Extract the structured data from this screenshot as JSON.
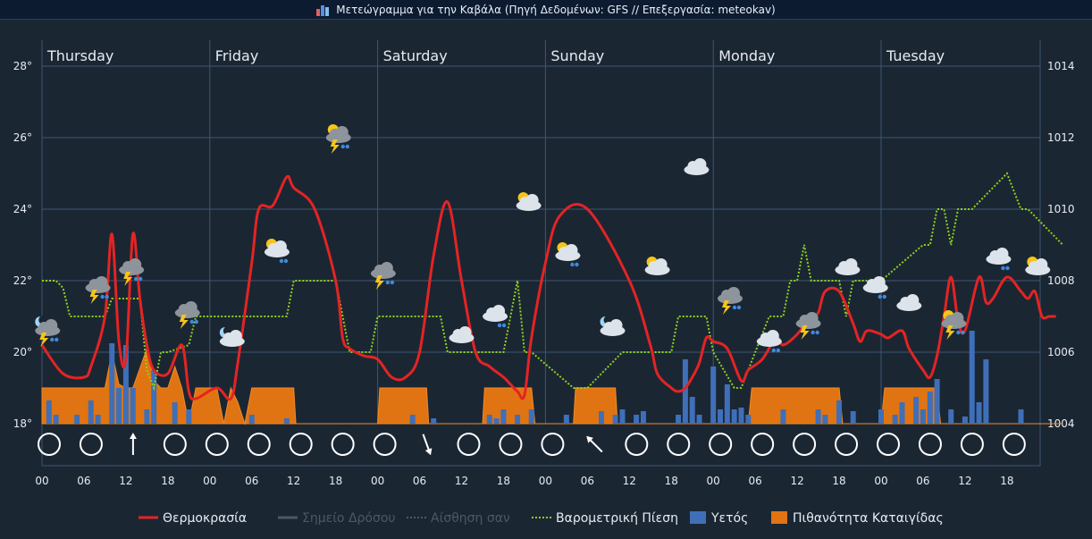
{
  "window": {
    "title": "Μετεώγραμμα για την Καβάλα (Πηγή Δεδομένων: GFS // Επεξεργασία: meteokav)"
  },
  "colors": {
    "background": "#1b2633",
    "grid": "#3e5770",
    "temperature": "#e32424",
    "pressure": "#8cd21e",
    "precipitation": "#3f6fb8",
    "storm": "#e07412",
    "text": "#e6ebf2"
  },
  "chart_data": {
    "type": "line",
    "days": [
      "Thursday",
      "Friday",
      "Saturday",
      "Sunday",
      "Monday",
      "Tuesday"
    ],
    "x_ticks": [
      "00",
      "06",
      "12",
      "18",
      "00",
      "06",
      "12",
      "18",
      "00",
      "06",
      "12",
      "18",
      "00",
      "06",
      "12",
      "18",
      "00",
      "06",
      "12",
      "18",
      "00",
      "06",
      "12",
      "18"
    ],
    "x_unit": "hours since Thursday 00:00",
    "x_range": [
      0,
      146
    ],
    "y_left": {
      "ticks": [
        "18°",
        "20°",
        "22°",
        "24°",
        "26°",
        "28°"
      ],
      "range": [
        18,
        28
      ],
      "unit": "°C"
    },
    "y_right": {
      "ticks": [
        "1004",
        "1006",
        "1008",
        "1010",
        "1012",
        "1014"
      ],
      "range": [
        1004,
        1014
      ],
      "unit": "hPa"
    },
    "grid": true,
    "legend_position": "bottom",
    "legend": [
      {
        "key": "temperature",
        "label": "Θερμοκρασία",
        "style": "line",
        "color": "#e32424"
      },
      {
        "key": "dewpoint",
        "label": "Σημείο Δρόσου",
        "style": "line",
        "color": "#4e5864"
      },
      {
        "key": "feels_like",
        "label": "Αίσθηση σαν",
        "style": "dotted",
        "color": "#4e5864"
      },
      {
        "key": "pressure",
        "label": "Βαρομετρική Πίεση",
        "style": "dotted",
        "color": "#8cd21e"
      },
      {
        "key": "precipitation",
        "label": "Υετός",
        "style": "bar",
        "color": "#3f6fb8"
      },
      {
        "key": "storm_probability",
        "label": "Πιθανότητα Καταιγίδας",
        "style": "area",
        "color": "#e07412"
      }
    ],
    "temperature": {
      "x": [
        0,
        3,
        6,
        7,
        9,
        10,
        11,
        12,
        13,
        14,
        15,
        16,
        18,
        20,
        21,
        22,
        25,
        27,
        28,
        30,
        31,
        33,
        35,
        36,
        39,
        42,
        43,
        44,
        46,
        48,
        50,
        52,
        54,
        56,
        58,
        60,
        62,
        64,
        66,
        67,
        68,
        69,
        70,
        72,
        74,
        78,
        84,
        87,
        88,
        90,
        91,
        92,
        93,
        94,
        95,
        96,
        98,
        100,
        101,
        103,
        105,
        106,
        108,
        110,
        111,
        112,
        114,
        116,
        117,
        118,
        120,
        121,
        123,
        124,
        126,
        127,
        128,
        129,
        130,
        131,
        132,
        134,
        135,
        136,
        138,
        140,
        141,
        142,
        143,
        144,
        145
      ],
      "y": [
        20.2,
        19.4,
        19.3,
        19.6,
        21,
        23.3,
        20.3,
        19.8,
        23.3,
        21.5,
        20.2,
        19.5,
        19.4,
        20.2,
        18.9,
        18.7,
        19,
        18.7,
        19.7,
        22.5,
        24,
        24.1,
        24.9,
        24.6,
        24,
        22,
        20.4,
        20.1,
        19.9,
        19.8,
        19.3,
        19.3,
        20,
        22.7,
        24.2,
        22,
        20,
        19.6,
        19.3,
        19.1,
        18.9,
        18.8,
        20.4,
        22.5,
        23.8,
        24,
        22,
        20.2,
        19.4,
        19,
        18.9,
        19,
        19.3,
        19.7,
        20.4,
        20.3,
        20.1,
        19.2,
        19.5,
        19.8,
        20.4,
        20.2,
        20.5,
        21,
        21.1,
        21.7,
        21.7,
        20.8,
        20.3,
        20.6,
        20.5,
        20.4,
        20.6,
        20.1,
        19.5,
        19.3,
        19.9,
        21,
        22.1,
        20.9,
        20.6,
        22.1,
        21.4,
        21.5,
        22.1,
        21.7,
        21.5,
        21.7,
        21.0,
        21.0,
        21.0
      ]
    },
    "pressure": {
      "x": [
        0,
        2,
        3,
        4,
        9,
        10,
        14,
        15,
        16,
        17,
        18,
        21,
        22,
        35,
        36,
        42,
        43,
        44,
        45,
        47,
        48,
        50,
        52,
        57,
        58,
        60,
        62,
        66,
        67,
        68,
        69,
        70,
        76,
        78,
        83,
        90,
        91,
        95,
        96,
        99,
        100,
        104,
        106,
        107,
        108,
        109,
        110,
        114,
        115,
        116,
        120,
        126,
        127,
        128,
        129,
        130,
        131,
        132,
        133,
        138,
        140,
        141,
        146
      ],
      "y": [
        1008,
        1008,
        1007.8,
        1007,
        1007,
        1007.5,
        1007.5,
        1005.5,
        1005,
        1006,
        1006,
        1006.2,
        1007,
        1007,
        1008,
        1008,
        1007,
        1006,
        1006,
        1006,
        1007,
        1007,
        1007,
        1007,
        1006,
        1006,
        1006,
        1006,
        1007,
        1008,
        1006,
        1006,
        1005,
        1005,
        1006,
        1006,
        1007,
        1007,
        1006,
        1005,
        1005,
        1007,
        1007,
        1008,
        1008,
        1009,
        1008,
        1008,
        1007,
        1008,
        1008,
        1009,
        1009,
        1010,
        1010,
        1009,
        1010,
        1010,
        1010,
        1011,
        1010,
        1010,
        1009
      ]
    },
    "precipitation": {
      "x": [
        1,
        2,
        5,
        7,
        8,
        10,
        11,
        12,
        13,
        15,
        16,
        19,
        21,
        30,
        35,
        53,
        56,
        64,
        65,
        66,
        68,
        70,
        75,
        80,
        82,
        83,
        85,
        86,
        91,
        92,
        93,
        94,
        96,
        97,
        98,
        99,
        100,
        101,
        106,
        111,
        112,
        114,
        116,
        120,
        122,
        123,
        125,
        126,
        127,
        128,
        130,
        132,
        133,
        134,
        135,
        140
      ],
      "y": [
        0.65,
        0.25,
        0.25,
        0.65,
        0.25,
        2.25,
        1.0,
        2.2,
        1.0,
        0.4,
        1.5,
        0.6,
        0.4,
        0.25,
        0.15,
        0.25,
        0.15,
        0.25,
        0.15,
        0.4,
        0.25,
        0.4,
        0.25,
        0.35,
        0.25,
        0.4,
        0.25,
        0.35,
        0.25,
        1.8,
        0.75,
        0.25,
        1.6,
        0.4,
        1.1,
        0.4,
        0.45,
        0.25,
        0.4,
        0.4,
        0.25,
        0.65,
        0.35,
        0.4,
        0.25,
        0.6,
        0.75,
        0.4,
        0.9,
        1.25,
        0.4,
        0.2,
        2.6,
        0.6,
        1.8,
        0.4
      ]
    },
    "storm_probability": {
      "x": [
        0,
        9,
        10,
        11,
        12,
        13,
        15,
        16,
        17,
        18,
        19,
        20,
        21,
        22,
        25,
        26,
        27,
        28,
        29,
        30,
        36,
        36.3,
        48,
        48.3,
        55,
        55.3,
        63,
        63.3,
        70,
        70.5,
        76,
        76.3,
        82,
        82.3,
        101,
        101.5,
        114,
        114.5,
        120,
        120.5,
        128,
        128.5,
        146
      ],
      "y": [
        1.0,
        1.0,
        2.0,
        1.1,
        1.0,
        1.0,
        2.1,
        1.2,
        1.0,
        1.0,
        1.6,
        1.0,
        0,
        1.0,
        1.0,
        0,
        1.0,
        0.6,
        0,
        1.0,
        1.0,
        0,
        0,
        1.0,
        1.0,
        0,
        0,
        1.0,
        1.0,
        0,
        0,
        1.0,
        1.0,
        0,
        0,
        1.0,
        1.0,
        0,
        0,
        1.0,
        1.0,
        0,
        0
      ]
    },
    "wind_directions": [
      "calm",
      "calm",
      "N",
      "calm",
      "calm",
      "calm",
      "calm",
      "calm",
      "calm",
      "SSE",
      "calm",
      "calm",
      "calm",
      "NW",
      "calm",
      "calm",
      "calm",
      "calm",
      "calm",
      "calm",
      "calm",
      "calm",
      "calm",
      "calm"
    ],
    "weather_icons": [
      {
        "t": 1,
        "temp": 20.2,
        "icon": "night-thunderstorm"
      },
      {
        "t": 10,
        "temp": 21.4,
        "icon": "thunderstorm"
      },
      {
        "t": 16,
        "temp": 21.9,
        "icon": "thunderstorm"
      },
      {
        "t": 26,
        "temp": 20.7,
        "icon": "thunderstorm"
      },
      {
        "t": 34,
        "temp": 19.9,
        "icon": "night-cloud"
      },
      {
        "t": 42,
        "temp": 22.4,
        "icon": "sun-rain"
      },
      {
        "t": 53,
        "temp": 25.6,
        "icon": "sun-storm"
      },
      {
        "t": 61,
        "temp": 21.8,
        "icon": "thunderstorm"
      },
      {
        "t": 75,
        "temp": 20.0,
        "icon": "cloud"
      },
      {
        "t": 81,
        "temp": 20.6,
        "icon": "cloud-rain"
      },
      {
        "t": 87,
        "temp": 23.7,
        "icon": "partly-cloudy"
      },
      {
        "t": 94,
        "temp": 22.3,
        "icon": "sun-rain"
      },
      {
        "t": 102,
        "temp": 20.2,
        "icon": "night-cloud"
      },
      {
        "t": 110,
        "temp": 21.9,
        "icon": "partly-cloudy"
      },
      {
        "t": 117,
        "temp": 24.7,
        "icon": "cloud"
      },
      {
        "t": 123,
        "temp": 21.1,
        "icon": "thunderstorm"
      },
      {
        "t": 130,
        "temp": 19.9,
        "icon": "cloud-rain"
      },
      {
        "t": 137,
        "temp": 20.4,
        "icon": "thunderstorm"
      },
      {
        "t": 144,
        "temp": 21.9,
        "icon": "cloud"
      },
      {
        "t": 149,
        "temp": 21.4,
        "icon": "cloud-rain"
      },
      {
        "t": 155,
        "temp": 20.9,
        "icon": "cloud"
      },
      {
        "t": 163,
        "temp": 20.4,
        "icon": "sun-storm"
      },
      {
        "t": 171,
        "temp": 22.2,
        "icon": "cloud-rain"
      },
      {
        "t": 178,
        "temp": 21.9,
        "icon": "partly-cloudy"
      }
    ]
  }
}
